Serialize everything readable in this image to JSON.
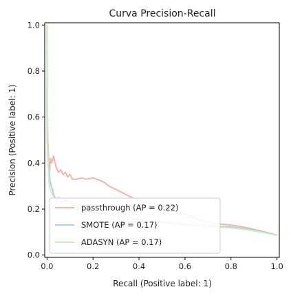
{
  "chart_data": {
    "type": "line",
    "title": "Curva Precision-Recall",
    "xlabel": "Recall (Positive label: 1)",
    "ylabel": "Precision (Positive label: 1)",
    "xlim": [
      -0.01,
      1.01
    ],
    "ylim": [
      -0.01,
      1.01
    ],
    "x_ticks": [
      "0.0",
      "0.2",
      "0.4",
      "0.6",
      "0.8",
      "1.0"
    ],
    "y_ticks": [
      "0.0",
      "0.2",
      "0.4",
      "0.6",
      "0.8",
      "1.0"
    ],
    "grid": false,
    "legend_position": "lower-left",
    "series": [
      {
        "name": "passthrough (AP = 0.22)",
        "color": "#f4b3ad",
        "points": [
          [
            0.0,
            1.0
          ],
          [
            0.001,
            0.5
          ],
          [
            0.003,
            0.44
          ],
          [
            0.006,
            0.38
          ],
          [
            0.01,
            0.35
          ],
          [
            0.015,
            0.42
          ],
          [
            0.02,
            0.4
          ],
          [
            0.028,
            0.43
          ],
          [
            0.033,
            0.41
          ],
          [
            0.04,
            0.38
          ],
          [
            0.05,
            0.36
          ],
          [
            0.06,
            0.37
          ],
          [
            0.07,
            0.35
          ],
          [
            0.08,
            0.36
          ],
          [
            0.09,
            0.34
          ],
          [
            0.1,
            0.35
          ],
          [
            0.11,
            0.33
          ],
          [
            0.13,
            0.33
          ],
          [
            0.15,
            0.335
          ],
          [
            0.17,
            0.33
          ],
          [
            0.2,
            0.335
          ],
          [
            0.23,
            0.325
          ],
          [
            0.25,
            0.315
          ],
          [
            0.27,
            0.3
          ],
          [
            0.3,
            0.285
          ],
          [
            0.33,
            0.27
          ],
          [
            0.36,
            0.255
          ],
          [
            0.38,
            0.245
          ],
          [
            0.4,
            0.24
          ],
          [
            0.43,
            0.23
          ],
          [
            0.46,
            0.225
          ],
          [
            0.5,
            0.215
          ],
          [
            0.54,
            0.2
          ],
          [
            0.58,
            0.185
          ],
          [
            0.62,
            0.17
          ],
          [
            0.66,
            0.155
          ],
          [
            0.7,
            0.142
          ],
          [
            0.75,
            0.135
          ],
          [
            0.8,
            0.13
          ],
          [
            0.85,
            0.123
          ],
          [
            0.9,
            0.112
          ],
          [
            0.95,
            0.1
          ],
          [
            1.0,
            0.087
          ]
        ]
      },
      {
        "name": "SMOTE (AP = 0.17)",
        "color": "#b3cde3",
        "points": [
          [
            0.0,
            1.0
          ],
          [
            0.002,
            0.55
          ],
          [
            0.004,
            0.5
          ],
          [
            0.008,
            0.4
          ],
          [
            0.012,
            0.33
          ],
          [
            0.018,
            0.3
          ],
          [
            0.025,
            0.28
          ],
          [
            0.03,
            0.26
          ],
          [
            0.04,
            0.24
          ],
          [
            0.05,
            0.25
          ],
          [
            0.06,
            0.23
          ],
          [
            0.08,
            0.24
          ],
          [
            0.1,
            0.23
          ],
          [
            0.13,
            0.21
          ],
          [
            0.16,
            0.2
          ],
          [
            0.2,
            0.185
          ],
          [
            0.25,
            0.175
          ],
          [
            0.3,
            0.17
          ],
          [
            0.35,
            0.165
          ],
          [
            0.4,
            0.155
          ],
          [
            0.45,
            0.15
          ],
          [
            0.5,
            0.145
          ],
          [
            0.55,
            0.14
          ],
          [
            0.6,
            0.135
          ],
          [
            0.65,
            0.13
          ],
          [
            0.7,
            0.128
          ],
          [
            0.75,
            0.125
          ],
          [
            0.8,
            0.122
          ],
          [
            0.85,
            0.117
          ],
          [
            0.9,
            0.108
          ],
          [
            0.95,
            0.098
          ],
          [
            1.0,
            0.086
          ]
        ]
      },
      {
        "name": "ADASYN (AP = 0.17)",
        "color": "#ccebc5",
        "points": [
          [
            0.0,
            1.0
          ],
          [
            0.001,
            0.85
          ],
          [
            0.002,
            0.6
          ],
          [
            0.004,
            0.45
          ],
          [
            0.007,
            0.35
          ],
          [
            0.01,
            0.3
          ],
          [
            0.015,
            0.28
          ],
          [
            0.02,
            0.27
          ],
          [
            0.03,
            0.25
          ],
          [
            0.04,
            0.24
          ],
          [
            0.05,
            0.22
          ],
          [
            0.06,
            0.21
          ],
          [
            0.08,
            0.2
          ],
          [
            0.1,
            0.19
          ],
          [
            0.15,
            0.175
          ],
          [
            0.2,
            0.17
          ],
          [
            0.25,
            0.16
          ],
          [
            0.3,
            0.155
          ],
          [
            0.35,
            0.15
          ],
          [
            0.4,
            0.145
          ],
          [
            0.45,
            0.14
          ],
          [
            0.5,
            0.138
          ],
          [
            0.55,
            0.135
          ],
          [
            0.6,
            0.13
          ],
          [
            0.65,
            0.127
          ],
          [
            0.7,
            0.124
          ],
          [
            0.75,
            0.121
          ],
          [
            0.8,
            0.118
          ],
          [
            0.85,
            0.113
          ],
          [
            0.9,
            0.105
          ],
          [
            0.95,
            0.096
          ],
          [
            1.0,
            0.085
          ]
        ]
      }
    ]
  }
}
